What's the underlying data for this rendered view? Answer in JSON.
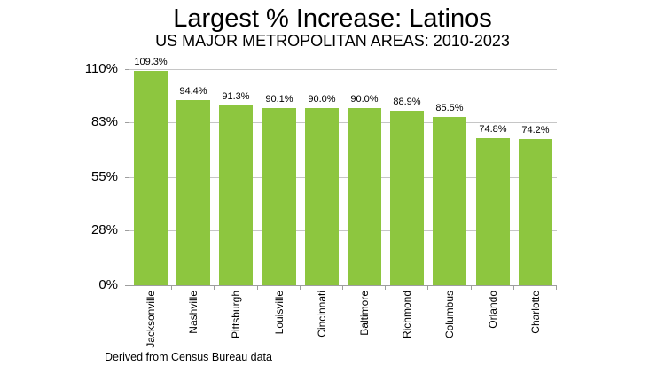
{
  "caption": "Derived from Census Bureau data",
  "chart_data": {
    "type": "bar",
    "title": "Largest % Increase: Latinos",
    "subtitle": "US MAJOR METROPOLITAN AREAS: 2010-2023",
    "categories": [
      "Jacksonville",
      "Nashville",
      "Pittsburgh",
      "Louisville",
      "Cincinnati",
      "Baltimore",
      "Richmond",
      "Columbus",
      "Orlando",
      "Charlotte"
    ],
    "values": [
      109.3,
      94.4,
      91.3,
      90.1,
      90.0,
      90.0,
      88.9,
      85.5,
      74.8,
      74.2
    ],
    "value_labels": [
      "109.3%",
      "94.4%",
      "91.3%",
      "90.1%",
      "90.0%",
      "90.0%",
      "88.9%",
      "85.5%",
      "74.8%",
      "74.2%"
    ],
    "xlabel": "",
    "ylabel": "",
    "ylim": [
      0,
      110
    ],
    "yticks": [
      0,
      28,
      55,
      83,
      110
    ],
    "ytick_labels": [
      "0%",
      "28%",
      "55%",
      "83%",
      "110%"
    ],
    "grid": true,
    "legend": false,
    "bar_color": "#8DC63F",
    "gridline_color": "#C6C6C6",
    "axis_color": "#9E9E9E",
    "text_color": "#000000",
    "background_color": "#FFFFFF"
  }
}
